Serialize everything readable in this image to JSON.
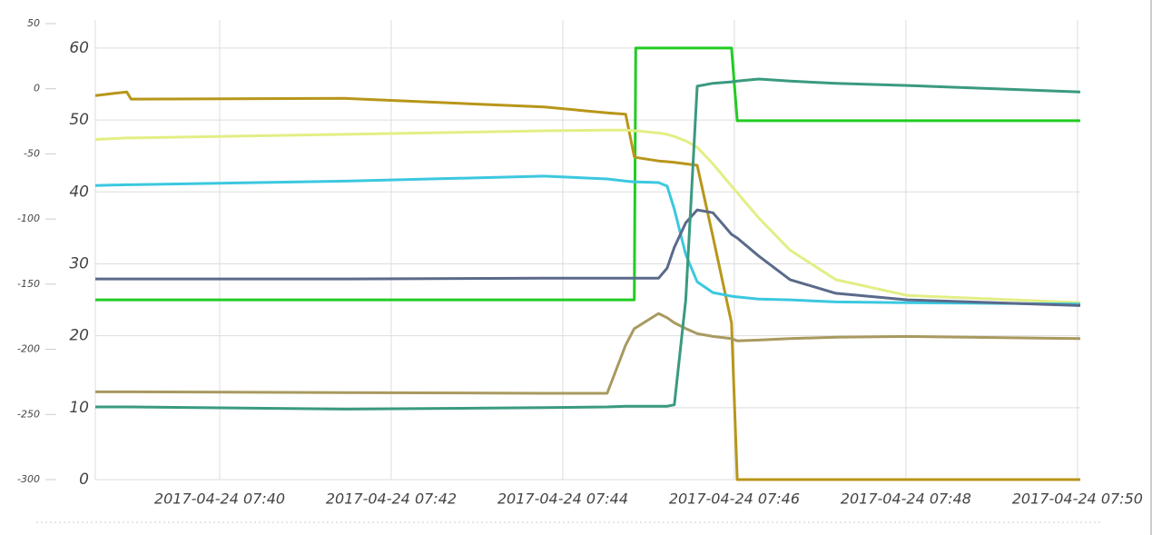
{
  "chart_data": {
    "type": "line",
    "grid": true,
    "x": [
      "2017-04-24 07:38:33",
      "2017-04-24 07:38:55",
      "2017-04-24 07:38:58",
      "2017-04-24 07:41:28",
      "2017-04-24 07:43:47",
      "2017-04-24 07:44:31",
      "2017-04-24 07:44:44",
      "2017-04-24 07:44:50",
      "2017-04-24 07:44:51",
      "2017-04-24 07:45:07",
      "2017-04-24 07:45:13",
      "2017-04-24 07:45:18",
      "2017-04-24 07:45:26",
      "2017-04-24 07:45:34",
      "2017-04-24 07:45:45",
      "2017-04-24 07:45:58",
      "2017-04-24 07:46:02",
      "2017-04-24 07:46:17",
      "2017-04-24 07:46:39",
      "2017-04-24 07:47:11",
      "2017-04-24 07:48:01",
      "2017-04-24 07:50:02"
    ],
    "xlim": [
      "2017-04-24 07:38:33",
      "2017-04-24 07:50:02"
    ],
    "xticks": [
      "2017-04-24 07:40",
      "2017-04-24 07:42",
      "2017-04-24 07:44",
      "2017-04-24 07:46",
      "2017-04-24 07:48",
      "2017-04-24 07:50"
    ],
    "ylim": [
      0,
      63.4
    ],
    "yticks": [
      0,
      10,
      20,
      30,
      40,
      50,
      60
    ],
    "y2lim": [
      -300,
      50
    ],
    "y2ticks": [
      -300,
      -250,
      -200,
      -150,
      -100,
      -50,
      0,
      50
    ],
    "series": [
      {
        "color": "#22cc22",
        "values": [
          25,
          25,
          25,
          25,
          25,
          25,
          25,
          25,
          60,
          60,
          60,
          60,
          60,
          60,
          60,
          60,
          49.9,
          49.9,
          49.9,
          49.9,
          49.9,
          49.9
        ]
      },
      {
        "color": "#b8961a",
        "values": [
          53.4,
          53.9,
          52.9,
          53.0,
          51.8,
          51.0,
          50.8,
          44.9,
          44.8,
          44.3,
          44.2,
          44.1,
          43.9,
          43.7,
          33.8,
          21.8,
          0,
          0,
          0,
          0,
          0,
          0
        ]
      },
      {
        "color": "#e3ee85",
        "values": [
          47.3,
          47.5,
          47.5,
          48.0,
          48.5,
          48.6,
          48.6,
          48.5,
          48.5,
          48.2,
          48.0,
          47.7,
          47.1,
          46.2,
          43.9,
          40.8,
          39.9,
          36.4,
          31.9,
          27.8,
          25.6,
          24.6
        ]
      },
      {
        "color": "#3cc8e0",
        "values": [
          40.9,
          41.0,
          41.0,
          41.5,
          42.2,
          41.8,
          41.5,
          41.4,
          41.4,
          41.3,
          40.8,
          37.6,
          31.3,
          27.5,
          26.0,
          25.5,
          25.4,
          25.1,
          25.0,
          24.7,
          24.6,
          24.4
        ]
      },
      {
        "color": "#5a6a8a",
        "values": [
          27.9,
          27.9,
          27.9,
          27.9,
          28.0,
          28.0,
          28.0,
          28.0,
          28.0,
          28.0,
          29.4,
          32.3,
          35.7,
          37.5,
          37.1,
          34.1,
          33.6,
          31.1,
          27.8,
          25.9,
          25.0,
          24.2
        ]
      },
      {
        "color": "#a89a60",
        "values": [
          12.2,
          12.2,
          12.2,
          12.1,
          12.0,
          12.0,
          18.7,
          21.0,
          21.1,
          23.1,
          22.5,
          21.8,
          21.0,
          20.3,
          19.9,
          19.6,
          19.3,
          19.4,
          19.6,
          19.8,
          19.9,
          19.6
        ]
      },
      {
        "color": "#3a9a80",
        "values": [
          10.1,
          10.1,
          10.1,
          9.8,
          10.0,
          10.1,
          10.2,
          10.2,
          10.2,
          10.2,
          10.2,
          10.4,
          25.0,
          54.7,
          55.1,
          55.3,
          55.4,
          55.7,
          55.4,
          55.1,
          54.8,
          53.9
        ]
      }
    ]
  }
}
